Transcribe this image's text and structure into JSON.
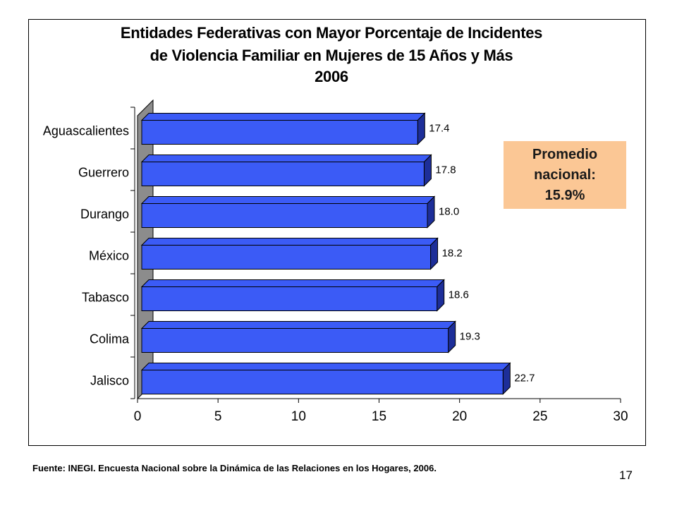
{
  "slide": {
    "title_lines": [
      "Entidades Federativas con Mayor Porcentaje de Incidentes",
      "de Violencia Familiar  en Mujeres de 15 Años y Más",
      "2006"
    ],
    "callout_lines": [
      "Promedio",
      "nacional:",
      "15.9%"
    ],
    "source": "Fuente: INEGI. Encuesta Nacional sobre la Dinámica de las Relaciones en los Hogares, 2006.",
    "page_number": "17"
  },
  "chart_data": {
    "type": "bar",
    "orientation": "horizontal",
    "categories": [
      "Aguascalientes",
      "Guerrero",
      "Durango",
      "México",
      "Tabasco",
      "Colima",
      "Jalisco"
    ],
    "values": [
      17.4,
      17.8,
      18.0,
      18.2,
      18.6,
      19.3,
      22.7
    ],
    "value_labels": [
      "17.4",
      "17.8",
      "18.0",
      "18.2",
      "18.6",
      "19.3",
      "22.7"
    ],
    "xlim": [
      0,
      30
    ],
    "xticks": [
      "0",
      "5",
      "10",
      "15",
      "20",
      "25",
      "30"
    ],
    "bar_color": "#3b5bf6",
    "bar_side_color": "#1d2e99",
    "wall_color": "#8c8c8c",
    "grid": false,
    "legend": "none"
  }
}
